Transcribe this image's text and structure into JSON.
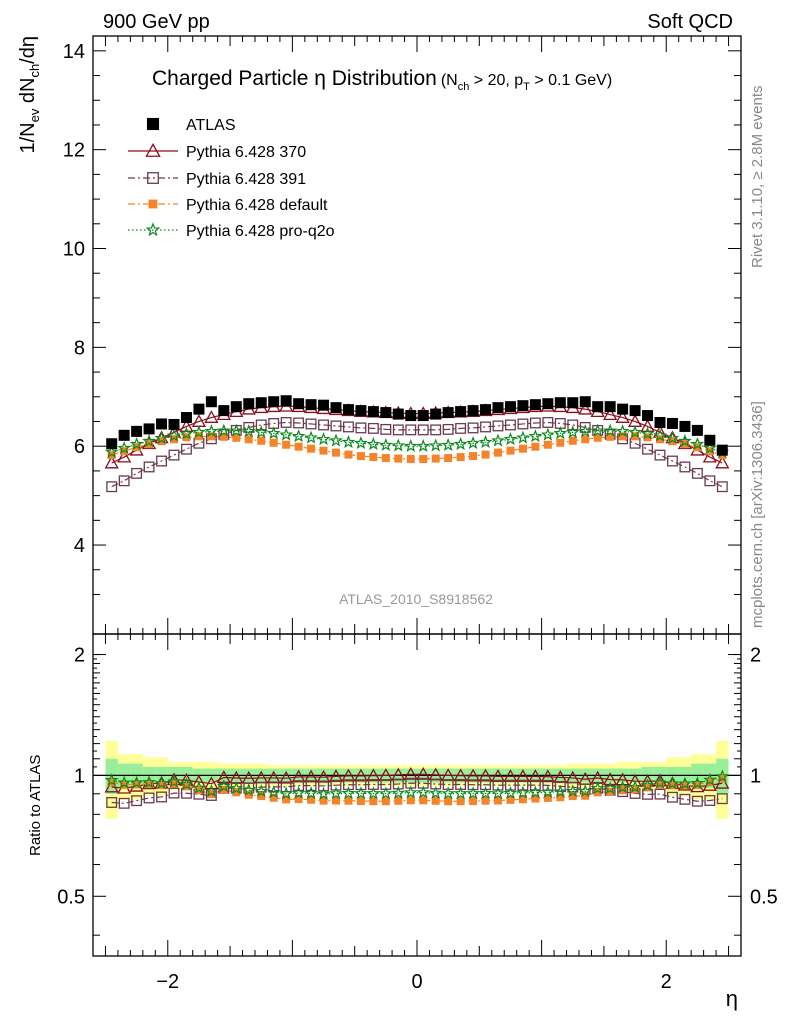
{
  "header": {
    "left": "900 GeV pp",
    "right": "Soft QCD"
  },
  "side_labels": {
    "rivet": "Rivet 3.1.10, ≥ 2.8M events",
    "mcplots": "mcplots.cern.ch [arXiv:1306.3436]"
  },
  "chart_data": [
    {
      "type": "scatter",
      "panel": "main",
      "title_main": "Charged Particle η Distribution",
      "title_cut": "(N_ch > 20, p_T > 0.1 GeV)",
      "title_parts": {
        "main": "Charged Particle η Distribution",
        "open": "(N",
        "nch_sub": "ch",
        "gt20": " > 20, p",
        "pt_sub": "T",
        "rest": " > 0.1 GeV)"
      },
      "analysis_id": "ATLAS_2010_S8918562",
      "ylabel_parts": {
        "a": "1/N",
        "a_sub": "ev",
        "b": " dN",
        "b_sub": "ch",
        "c": "/dη"
      },
      "xlim": [
        -2.6,
        2.6
      ],
      "ylim": [
        2.2,
        14.3
      ],
      "y_ticks": [
        4,
        6,
        8,
        10,
        12,
        14
      ],
      "y_tick_labels": [
        "4",
        "6",
        "8",
        "10",
        "12",
        "14"
      ],
      "x_ticks": [
        -2,
        0,
        2
      ],
      "x_tick_labels": [
        "−2",
        "0",
        "2"
      ],
      "xlabel": "η",
      "legend_position": "top-left",
      "eta": [
        -2.45,
        -2.35,
        -2.25,
        -2.15,
        -2.05,
        -1.95,
        -1.85,
        -1.75,
        -1.65,
        -1.55,
        -1.45,
        -1.35,
        -1.25,
        -1.15,
        -1.05,
        -0.95,
        -0.85,
        -0.75,
        -0.65,
        -0.55,
        -0.45,
        -0.35,
        -0.25,
        -0.15,
        -0.05,
        0.05,
        0.15,
        0.25,
        0.35,
        0.45,
        0.55,
        0.65,
        0.75,
        0.85,
        0.95,
        1.05,
        1.15,
        1.25,
        1.35,
        1.45,
        1.55,
        1.65,
        1.75,
        1.85,
        1.95,
        2.05,
        2.15,
        2.25,
        2.35,
        2.45
      ],
      "series": [
        {
          "name": "ATLAS",
          "marker": "filled-square",
          "color": "#000000",
          "values": [
            6.05,
            6.22,
            6.3,
            6.35,
            6.45,
            6.44,
            6.58,
            6.75,
            6.9,
            6.72,
            6.8,
            6.86,
            6.88,
            6.9,
            6.92,
            6.86,
            6.84,
            6.83,
            6.78,
            6.74,
            6.72,
            6.7,
            6.68,
            6.65,
            6.62,
            6.62,
            6.65,
            6.68,
            6.7,
            6.72,
            6.74,
            6.78,
            6.8,
            6.82,
            6.84,
            6.86,
            6.88,
            6.88,
            6.9,
            6.8,
            6.8,
            6.75,
            6.72,
            6.62,
            6.48,
            6.46,
            6.4,
            6.32,
            6.12,
            5.92
          ]
        },
        {
          "name": "Pythia 6.428 370",
          "marker": "open-triangle",
          "color": "#8b0e1e",
          "line": "solid",
          "values": [
            5.66,
            5.78,
            5.92,
            6.05,
            6.17,
            6.28,
            6.4,
            6.5,
            6.58,
            6.64,
            6.7,
            6.75,
            6.78,
            6.8,
            6.81,
            6.8,
            6.78,
            6.76,
            6.74,
            6.72,
            6.7,
            6.69,
            6.68,
            6.67,
            6.66,
            6.66,
            6.67,
            6.68,
            6.69,
            6.7,
            6.72,
            6.74,
            6.76,
            6.78,
            6.8,
            6.81,
            6.8,
            6.78,
            6.75,
            6.7,
            6.64,
            6.58,
            6.5,
            6.4,
            6.28,
            6.17,
            6.05,
            5.92,
            5.78,
            5.66
          ]
        },
        {
          "name": "Pythia 6.428 391",
          "marker": "open-square",
          "color": "#6b3a4e",
          "line": "dash-dot",
          "values": [
            5.18,
            5.3,
            5.45,
            5.58,
            5.7,
            5.82,
            5.94,
            6.06,
            6.15,
            6.24,
            6.32,
            6.38,
            6.43,
            6.46,
            6.48,
            6.47,
            6.45,
            6.43,
            6.41,
            6.39,
            6.37,
            6.36,
            6.34,
            6.33,
            6.33,
            6.33,
            6.33,
            6.34,
            6.36,
            6.37,
            6.39,
            6.41,
            6.43,
            6.45,
            6.47,
            6.48,
            6.46,
            6.43,
            6.38,
            6.32,
            6.24,
            6.15,
            6.06,
            5.94,
            5.82,
            5.7,
            5.58,
            5.45,
            5.3,
            5.18
          ]
        },
        {
          "name": "Pythia 6.428 default",
          "marker": "filled-square-small",
          "color": "#f5832a",
          "line": "dash-dot",
          "values": [
            5.82,
            5.9,
            5.98,
            6.04,
            6.1,
            6.14,
            6.18,
            6.2,
            6.2,
            6.19,
            6.17,
            6.14,
            6.11,
            6.07,
            6.03,
            5.99,
            5.95,
            5.91,
            5.87,
            5.83,
            5.8,
            5.78,
            5.76,
            5.75,
            5.74,
            5.74,
            5.75,
            5.76,
            5.78,
            5.8,
            5.83,
            5.87,
            5.91,
            5.95,
            5.99,
            6.03,
            6.07,
            6.11,
            6.14,
            6.17,
            6.19,
            6.2,
            6.2,
            6.18,
            6.14,
            6.1,
            6.04,
            5.98,
            5.9,
            5.82
          ]
        },
        {
          "name": "Pythia 6.428 pro-q2o",
          "marker": "open-star",
          "color": "#0a8a1e",
          "line": "dotted",
          "values": [
            5.88,
            5.96,
            6.04,
            6.1,
            6.16,
            6.21,
            6.25,
            6.28,
            6.3,
            6.31,
            6.31,
            6.3,
            6.28,
            6.26,
            6.23,
            6.2,
            6.17,
            6.14,
            6.11,
            6.08,
            6.06,
            6.04,
            6.02,
            6.01,
            6.0,
            6.0,
            6.01,
            6.02,
            6.04,
            6.06,
            6.08,
            6.11,
            6.14,
            6.17,
            6.2,
            6.23,
            6.26,
            6.28,
            6.3,
            6.31,
            6.31,
            6.3,
            6.28,
            6.25,
            6.21,
            6.16,
            6.1,
            6.04,
            5.96,
            5.88
          ]
        }
      ]
    },
    {
      "type": "scatter",
      "panel": "ratio",
      "ylabel": "Ratio to ATLAS",
      "ylim": [
        0.355,
        2.25
      ],
      "y_ticks": [
        0.5,
        1,
        2
      ],
      "y_tick_labels": [
        "0.5",
        "1",
        "2"
      ],
      "xlim": [
        -2.6,
        2.6
      ],
      "band_stat_halfwidth": [
        0.1,
        0.07,
        0.07,
        0.05,
        0.05,
        0.05,
        0.05,
        0.04,
        0.04,
        0.04,
        0.04,
        0.04,
        0.04,
        0.04,
        0.04,
        0.04,
        0.04,
        0.04,
        0.04,
        0.04,
        0.04,
        0.04,
        0.04,
        0.04,
        0.04,
        0.04,
        0.04,
        0.04,
        0.04,
        0.04,
        0.04,
        0.04,
        0.04,
        0.04,
        0.04,
        0.04,
        0.04,
        0.04,
        0.04,
        0.04,
        0.04,
        0.04,
        0.04,
        0.05,
        0.05,
        0.05,
        0.05,
        0.07,
        0.07,
        0.1
      ],
      "band_total_halfwidth": [
        0.22,
        0.13,
        0.13,
        0.11,
        0.11,
        0.08,
        0.08,
        0.08,
        0.08,
        0.07,
        0.07,
        0.07,
        0.07,
        0.06,
        0.06,
        0.06,
        0.06,
        0.06,
        0.06,
        0.06,
        0.06,
        0.06,
        0.06,
        0.06,
        0.06,
        0.06,
        0.06,
        0.06,
        0.06,
        0.06,
        0.06,
        0.06,
        0.06,
        0.06,
        0.06,
        0.06,
        0.06,
        0.07,
        0.07,
        0.07,
        0.07,
        0.08,
        0.08,
        0.08,
        0.08,
        0.11,
        0.11,
        0.13,
        0.13,
        0.22
      ],
      "band_colors": {
        "stat": "#99ee99",
        "total": "#ffff99"
      }
    }
  ]
}
